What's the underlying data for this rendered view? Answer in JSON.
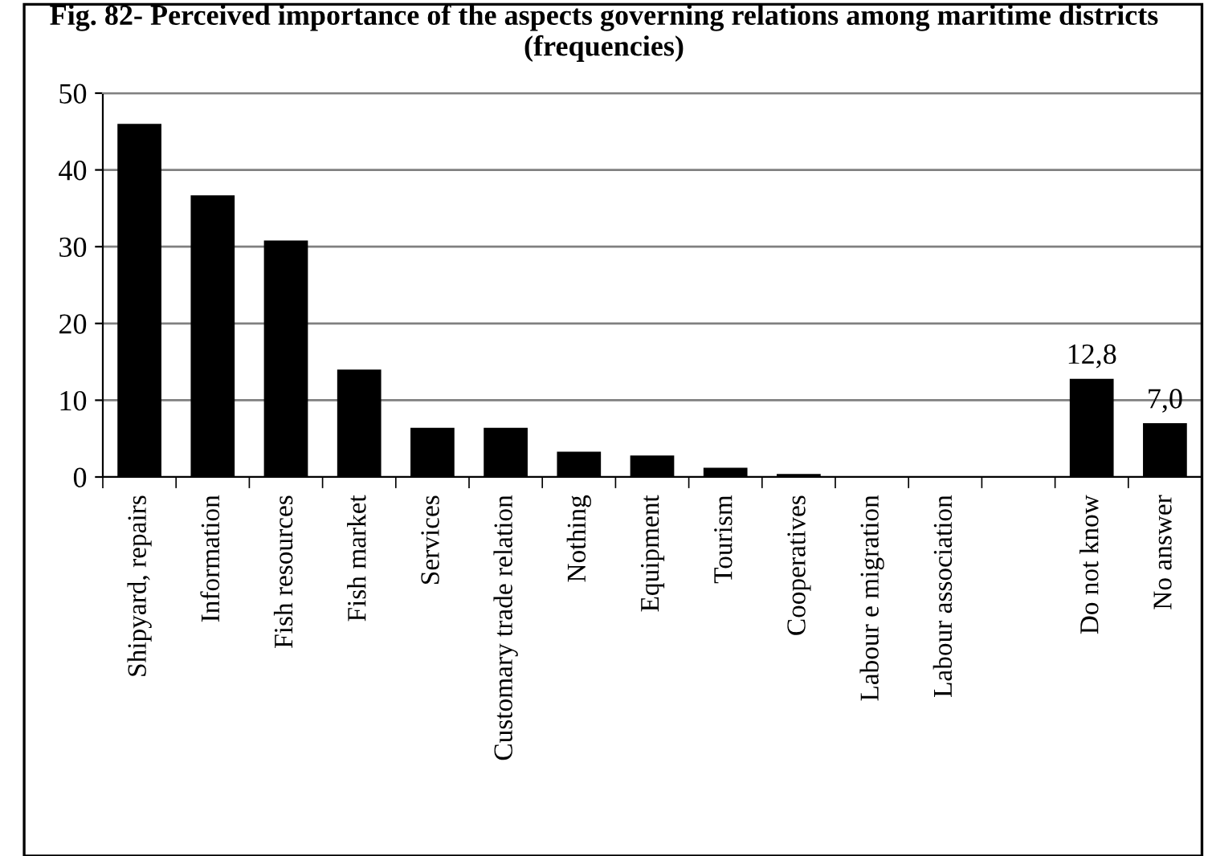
{
  "chart_data": {
    "type": "bar",
    "title": "Fig. 82- Perceived importance of the aspects governing relations among maritime districts (frequencies)",
    "categories": [
      "Shipyard, repairs",
      "Information",
      "Fish resources",
      "Fish market",
      "Services",
      "Customary trade relation",
      "Nothing",
      "Equipment",
      "Tourism",
      "Cooperatives",
      "Labour e migration",
      "Labour association",
      null,
      "Do not know",
      "No answer"
    ],
    "values": [
      46,
      36.7,
      30.8,
      14.0,
      6.4,
      6.4,
      3.3,
      2.8,
      1.2,
      0.4,
      0,
      0,
      null,
      12.8,
      7.0
    ],
    "value_labels": [
      null,
      null,
      null,
      null,
      null,
      null,
      null,
      null,
      null,
      null,
      null,
      null,
      null,
      "12,8",
      "7,0"
    ],
    "color": "#000000",
    "ylim": [
      0,
      50
    ],
    "yticks": [
      0,
      10,
      20,
      30,
      40,
      50
    ],
    "grid": "y",
    "legend": false
  }
}
